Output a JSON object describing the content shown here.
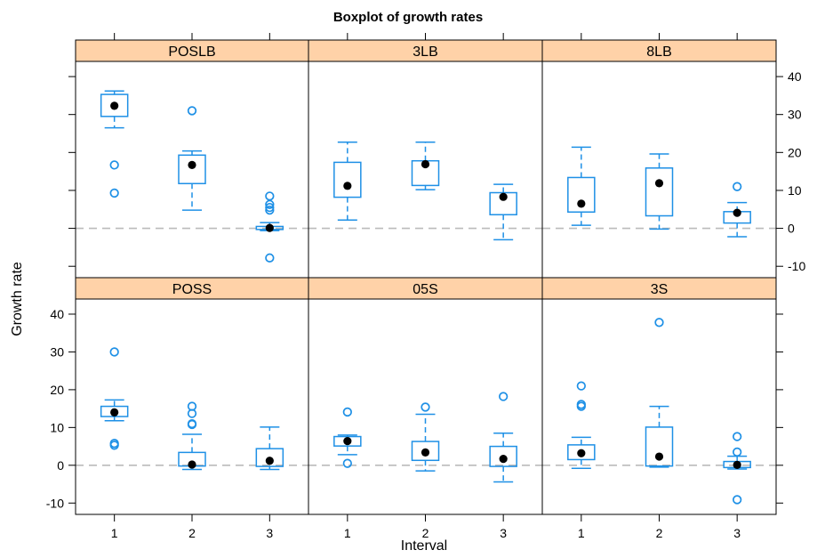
{
  "chart_data": {
    "type": "boxplot",
    "title": "Boxplot of growth rates",
    "xlabel": "Interval",
    "ylabel": "Growth rate",
    "x_categories": [
      "1",
      "2",
      "3"
    ],
    "ylim": [
      -13,
      44
    ],
    "y_ticks": [
      -10,
      0,
      10,
      20,
      30,
      40
    ],
    "y_tick_labels": [
      "-10",
      "0",
      "10",
      "20",
      "30",
      "40"
    ],
    "reference_line": 0,
    "colors": {
      "box": "#1e90e6",
      "strip": "#ffd2a8",
      "median": "#000000",
      "refline": "#bbbbbb"
    },
    "panels": [
      {
        "name": "POSLB",
        "boxes": [
          {
            "interval": "1",
            "whisker_low": 26.5,
            "q1": 29.5,
            "median": 32.3,
            "q3": 35.3,
            "whisker_high": 36.2,
            "outliers": [
              16.7,
              9.3
            ]
          },
          {
            "interval": "2",
            "whisker_low": 4.8,
            "q1": 11.8,
            "median": 16.7,
            "q3": 19.3,
            "whisker_high": 20.4,
            "outliers": [
              31.0
            ]
          },
          {
            "interval": "3",
            "whisker_low": -0.6,
            "q1": -0.3,
            "median": 0.1,
            "q3": 0.5,
            "whisker_high": 1.5,
            "outliers": [
              8.5,
              6.3,
              5.5,
              4.8,
              -7.8
            ]
          }
        ]
      },
      {
        "name": "3LB",
        "boxes": [
          {
            "interval": "1",
            "whisker_low": 2.2,
            "q1": 8.2,
            "median": 11.2,
            "q3": 17.4,
            "whisker_high": 22.7,
            "outliers": []
          },
          {
            "interval": "2",
            "whisker_low": 10.2,
            "q1": 11.3,
            "median": 16.9,
            "q3": 17.8,
            "whisker_high": 22.7,
            "outliers": []
          },
          {
            "interval": "3",
            "whisker_low": -3.0,
            "q1": 3.6,
            "median": 8.3,
            "q3": 9.4,
            "whisker_high": 11.6,
            "outliers": []
          }
        ]
      },
      {
        "name": "8LB",
        "boxes": [
          {
            "interval": "1",
            "whisker_low": 0.8,
            "q1": 4.3,
            "median": 6.5,
            "q3": 13.4,
            "whisker_high": 21.4,
            "outliers": []
          },
          {
            "interval": "2",
            "whisker_low": -0.2,
            "q1": 3.3,
            "median": 11.9,
            "q3": 15.9,
            "whisker_high": 19.6,
            "outliers": []
          },
          {
            "interval": "3",
            "whisker_low": -2.2,
            "q1": 1.4,
            "median": 4.1,
            "q3": 4.4,
            "whisker_high": 6.8,
            "outliers": [
              11.0
            ]
          }
        ]
      },
      {
        "name": "POSS",
        "boxes": [
          {
            "interval": "1",
            "whisker_low": 11.8,
            "q1": 12.9,
            "median": 14.0,
            "q3": 15.6,
            "whisker_high": 17.3,
            "outliers": [
              30.0,
              5.8,
              5.3
            ]
          },
          {
            "interval": "2",
            "whisker_low": -1.1,
            "q1": -0.2,
            "median": 0.2,
            "q3": 3.4,
            "whisker_high": 8.2,
            "outliers": [
              15.6,
              13.7,
              11.0,
              10.8
            ]
          },
          {
            "interval": "3",
            "whisker_low": -1.1,
            "q1": -0.3,
            "median": 1.2,
            "q3": 4.4,
            "whisker_high": 10.1,
            "outliers": []
          }
        ]
      },
      {
        "name": "05S",
        "boxes": [
          {
            "interval": "1",
            "whisker_low": 2.8,
            "q1": 5.1,
            "median": 6.4,
            "q3": 7.6,
            "whisker_high": 8.0,
            "outliers": [
              14.1,
              0.5
            ]
          },
          {
            "interval": "2",
            "whisker_low": -1.5,
            "q1": 1.3,
            "median": 3.4,
            "q3": 6.3,
            "whisker_high": 13.5,
            "outliers": [
              15.4
            ]
          },
          {
            "interval": "3",
            "whisker_low": -4.4,
            "q1": -0.3,
            "median": 1.7,
            "q3": 5.0,
            "whisker_high": 8.5,
            "outliers": [
              18.2
            ]
          }
        ]
      },
      {
        "name": "3S",
        "boxes": [
          {
            "interval": "1",
            "whisker_low": -0.8,
            "q1": 1.5,
            "median": 3.2,
            "q3": 5.4,
            "whisker_high": 7.4,
            "outliers": [
              21.0,
              16.1,
              15.6
            ]
          },
          {
            "interval": "2",
            "whisker_low": -0.5,
            "q1": -0.2,
            "median": 2.3,
            "q3": 10.1,
            "whisker_high": 15.6,
            "outliers": [
              37.8
            ]
          },
          {
            "interval": "3",
            "whisker_low": -1.0,
            "q1": -0.6,
            "median": 0.1,
            "q3": 1.0,
            "whisker_high": 2.4,
            "outliers": [
              7.6,
              3.5,
              -9.1
            ]
          }
        ]
      }
    ]
  }
}
